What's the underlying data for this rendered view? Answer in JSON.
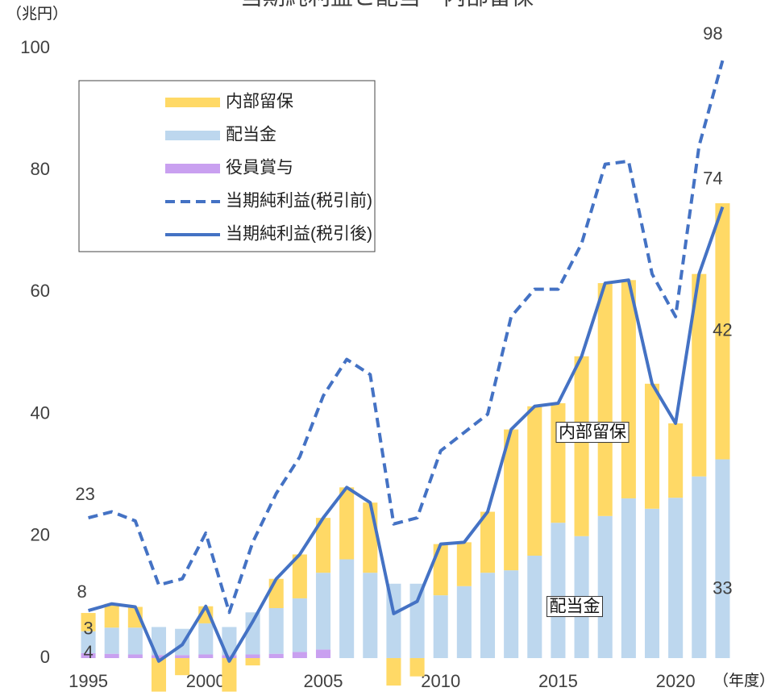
{
  "chart_data": {
    "type": "bar-line",
    "title": "当期純利益と配当・内部留保",
    "y_label": "（兆円）",
    "x_label": "（年度）",
    "x": [
      1995,
      1996,
      1997,
      1998,
      1999,
      2000,
      2001,
      2002,
      2003,
      2004,
      2005,
      2006,
      2007,
      2008,
      2009,
      2010,
      2011,
      2012,
      2013,
      2014,
      2015,
      2016,
      2017,
      2018,
      2019,
      2020,
      2021,
      2022
    ],
    "xlim": [
      1994.5,
      2022.5
    ],
    "xticks": [
      1995,
      2000,
      2005,
      2010,
      2015,
      2020
    ],
    "ylim": [
      0,
      100
    ],
    "yticks": [
      0,
      20,
      40,
      60,
      80,
      100
    ],
    "grid": false,
    "series": [
      {
        "name": "内部留保",
        "kind": "bar",
        "color": "#FFD966",
        "values": [
          3,
          3.9,
          3.4,
          -5.5,
          -2.8,
          2.8,
          -5.5,
          -1.2,
          4.8,
          7.2,
          9,
          11.8,
          11.5,
          -4.5,
          -3,
          8.4,
          7.2,
          10,
          23.1,
          24.5,
          19.6,
          29.5,
          38.2,
          35.8,
          20.5,
          12.2,
          33.2,
          42
        ],
        "value_labels": [
          "3",
          null,
          null,
          null,
          null,
          null,
          null,
          null,
          null,
          null,
          null,
          null,
          null,
          null,
          null,
          null,
          null,
          null,
          null,
          null,
          null,
          null,
          null,
          null,
          null,
          null,
          null,
          "42"
        ]
      },
      {
        "name": "配当金",
        "kind": "bar",
        "color": "#BDD7EE",
        "values": [
          3.6,
          4.3,
          4.4,
          4.6,
          4.3,
          5.1,
          4.6,
          6.9,
          7.5,
          8.8,
          12.6,
          16.2,
          14,
          12.2,
          12.2,
          10.3,
          11.8,
          14,
          14.4,
          16.8,
          22.2,
          20,
          23.3,
          26.2,
          24.5,
          26.3,
          29.8,
          32.6
        ],
        "value_labels": [
          "4",
          null,
          null,
          null,
          null,
          null,
          null,
          null,
          null,
          null,
          null,
          null,
          null,
          null,
          null,
          null,
          null,
          null,
          null,
          null,
          null,
          null,
          null,
          null,
          null,
          null,
          null,
          "33"
        ]
      },
      {
        "name": "役員賞与",
        "kind": "bar",
        "color": "#C9A0F0",
        "values": [
          0.8,
          0.7,
          0.6,
          0.5,
          0.5,
          0.6,
          0.5,
          0.6,
          0.7,
          1.0,
          1.4,
          0,
          0,
          0,
          0,
          0,
          0,
          0,
          0,
          0,
          0,
          0,
          0,
          0,
          0,
          0,
          0,
          0
        ]
      },
      {
        "name": "当期純利益(税引前)",
        "kind": "line",
        "dash": true,
        "color": "#4472C4",
        "values": [
          23,
          24,
          22.5,
          12,
          13,
          20.5,
          7.5,
          19,
          27,
          33,
          43,
          49,
          46.5,
          22,
          23,
          34,
          37,
          40,
          56,
          60.5,
          60.5,
          68,
          81,
          81.5,
          63,
          56,
          84,
          98
        ],
        "value_labels": [
          "23",
          null,
          null,
          null,
          null,
          null,
          null,
          null,
          null,
          null,
          null,
          null,
          null,
          null,
          null,
          null,
          null,
          null,
          null,
          null,
          null,
          null,
          null,
          null,
          null,
          null,
          null,
          "98"
        ]
      },
      {
        "name": "当期純利益(税引後)",
        "kind": "line",
        "dash": false,
        "color": "#4472C4",
        "values": [
          7.8,
          8.9,
          8.4,
          -0.5,
          2.2,
          8.5,
          -0.5,
          6,
          13,
          17,
          23,
          28,
          25.5,
          7.3,
          9.3,
          18.7,
          19,
          24,
          37.5,
          41.3,
          41.8,
          49.5,
          61.5,
          62,
          45,
          38.5,
          63,
          74
        ],
        "value_labels": [
          "8",
          null,
          null,
          null,
          null,
          null,
          null,
          null,
          null,
          null,
          null,
          null,
          null,
          null,
          null,
          null,
          null,
          null,
          null,
          null,
          null,
          null,
          null,
          null,
          null,
          null,
          null,
          "74"
        ]
      }
    ],
    "annotations": [
      "内部留保",
      "配当金"
    ]
  }
}
